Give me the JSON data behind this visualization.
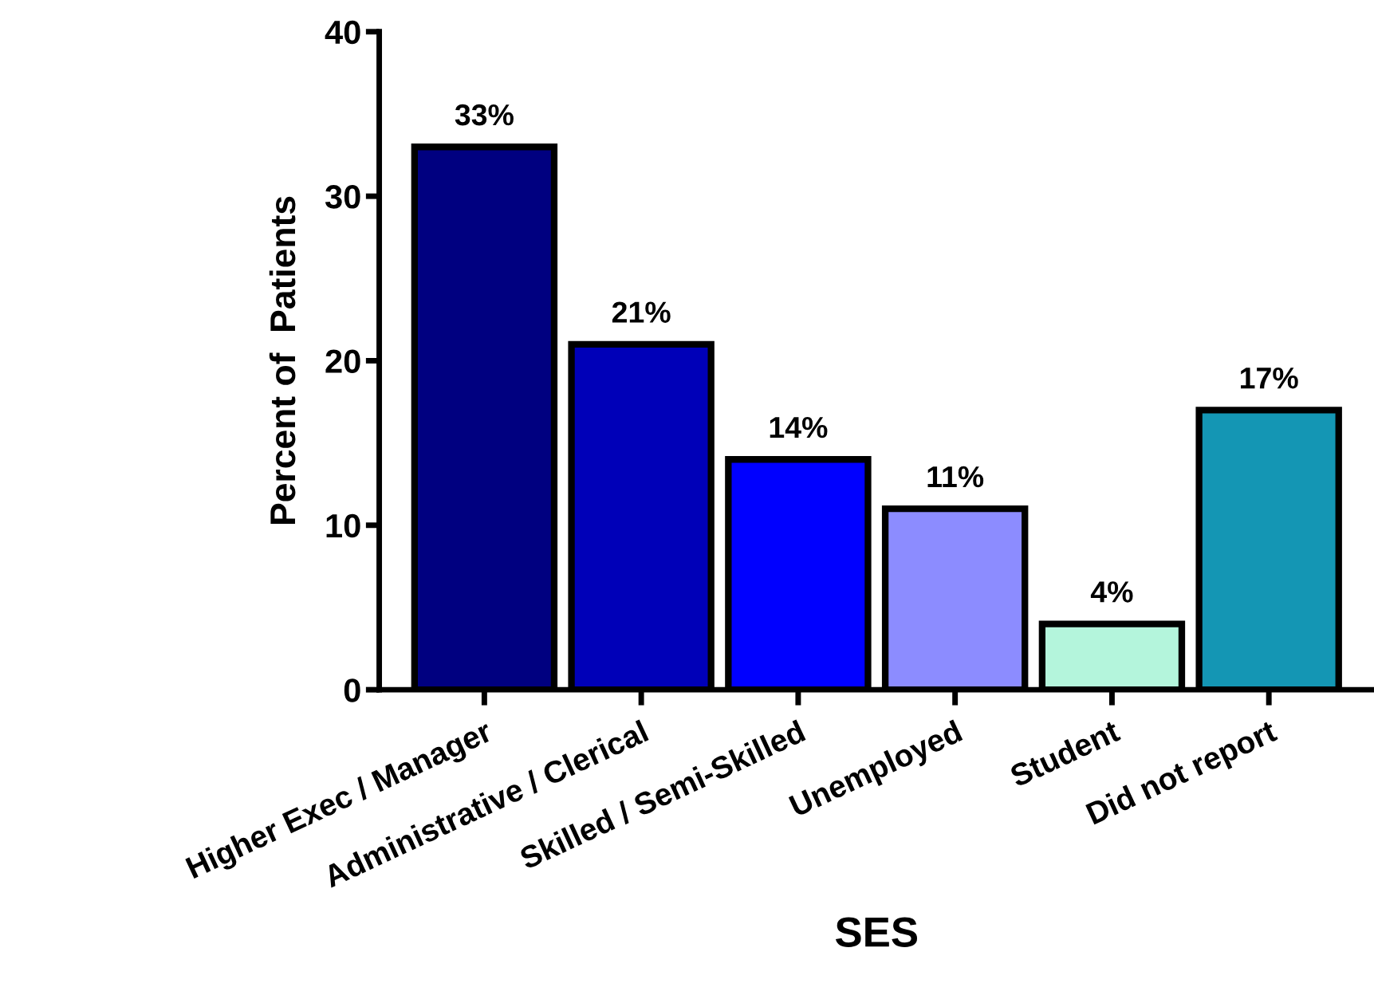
{
  "chart_data": {
    "type": "bar",
    "xlabel": "SES",
    "ylabel": "Percent of  Patients",
    "categories": [
      "Higher Exec / Manager",
      "Administrative / Clerical",
      "Skilled / Semi-Skilled",
      "Unemployed",
      "Student",
      "Did not report"
    ],
    "values": [
      33,
      21,
      14,
      11,
      4,
      17
    ],
    "colors": [
      "#000080",
      "#0000b8",
      "#0000ff",
      "#8c8cff",
      "#b4f5dc",
      "#1496b4"
    ],
    "value_labels": [
      "33%",
      "21%",
      "14%",
      "11%",
      "4%",
      "17%"
    ],
    "ylim": [
      0,
      40
    ],
    "yticks": [
      0,
      10,
      20,
      30,
      40
    ],
    "grid": false,
    "legend": false
  }
}
